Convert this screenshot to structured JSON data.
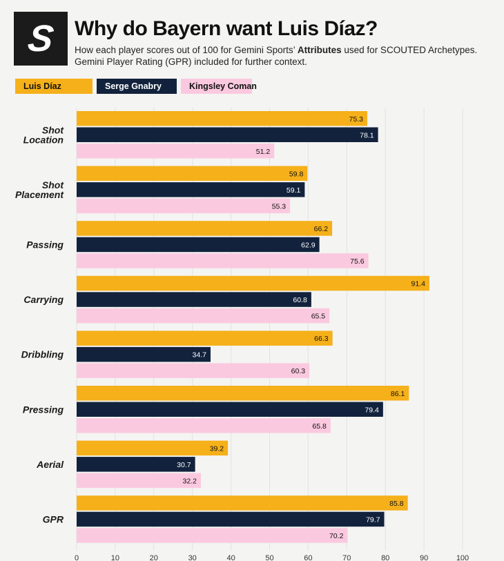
{
  "header": {
    "logo_letter": "S",
    "title": "Why do Bayern want Luis Díaz?",
    "subtitle_pre": "How each player scores out of 100 for Gemini Sports’ ",
    "subtitle_bold": "Attributes",
    "subtitle_post": " used for SCOUTED Archetypes. Gemini Player Rating (GPR) included for further context."
  },
  "colors": {
    "diaz": "#f5b01a",
    "gnabry": "#12223d",
    "coman": "#fbc9df",
    "grid": "#e2e2e2",
    "background": "#f4f4f2"
  },
  "chart_data": {
    "type": "bar",
    "orientation": "horizontal",
    "categories": [
      [
        "Shot",
        "Location"
      ],
      [
        "Shot",
        "Placement"
      ],
      [
        "Passing"
      ],
      [
        "Carrying"
      ],
      [
        "Dribbling"
      ],
      [
        "Pressing"
      ],
      [
        "Aerial"
      ],
      [
        "GPR"
      ]
    ],
    "series": [
      {
        "name": "Luis Díaz",
        "color": "#f5b01a",
        "text_color": "#111111",
        "values": [
          75.3,
          59.8,
          66.2,
          91.4,
          66.3,
          86.1,
          39.2,
          85.8
        ]
      },
      {
        "name": "Serge Gnabry",
        "color": "#12223d",
        "text_color": "#ffffff",
        "values": [
          78.1,
          59.1,
          62.9,
          60.8,
          34.7,
          79.4,
          30.7,
          79.7
        ]
      },
      {
        "name": "Kingsley Coman",
        "color": "#fbc9df",
        "text_color": "#111111",
        "values": [
          51.2,
          55.3,
          75.6,
          65.5,
          60.3,
          65.8,
          32.2,
          70.2
        ]
      }
    ],
    "xlim": [
      0,
      100
    ],
    "xticks": [
      0,
      10,
      20,
      30,
      40,
      50,
      60,
      70,
      80,
      90,
      100
    ],
    "grid": true,
    "legend": "top-left"
  }
}
